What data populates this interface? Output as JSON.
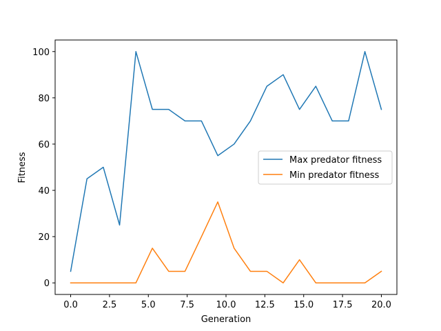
{
  "chart_data": {
    "type": "line",
    "title": "",
    "xlabel": "Generation",
    "ylabel": "Fitness",
    "xlim": [
      -1.0,
      21.0
    ],
    "ylim": [
      -5,
      105
    ],
    "xticks": [
      0.0,
      2.5,
      5.0,
      7.5,
      10.0,
      12.5,
      15.0,
      17.5,
      20.0
    ],
    "xtick_labels": [
      "0.0",
      "2.5",
      "5.0",
      "7.5",
      "10.0",
      "12.5",
      "15.0",
      "17.5",
      "20.0"
    ],
    "yticks": [
      0,
      20,
      40,
      60,
      80,
      100
    ],
    "ytick_labels": [
      "0",
      "20",
      "40",
      "60",
      "80",
      "100"
    ],
    "grid": false,
    "legend_position": "center-right",
    "x": [
      0.0,
      1.05,
      2.1,
      3.15,
      4.2,
      5.26,
      6.31,
      7.36,
      8.42,
      9.47,
      10.52,
      11.57,
      12.63,
      13.68,
      14.73,
      15.78,
      16.84,
      17.89,
      18.94,
      20.0
    ],
    "series": [
      {
        "name": "Max predator fitness",
        "color": "#1f77b4",
        "values": [
          5,
          45,
          50,
          25,
          100,
          75,
          75,
          70,
          70,
          55,
          60,
          70,
          85,
          90,
          75,
          85,
          70,
          70,
          100,
          75
        ]
      },
      {
        "name": "Min predator fitness",
        "color": "#ff7f0e",
        "values": [
          0,
          0,
          0,
          0,
          0,
          15,
          5,
          5,
          20,
          35,
          15,
          5,
          5,
          0,
          10,
          0,
          0,
          0,
          0,
          5
        ]
      }
    ]
  }
}
